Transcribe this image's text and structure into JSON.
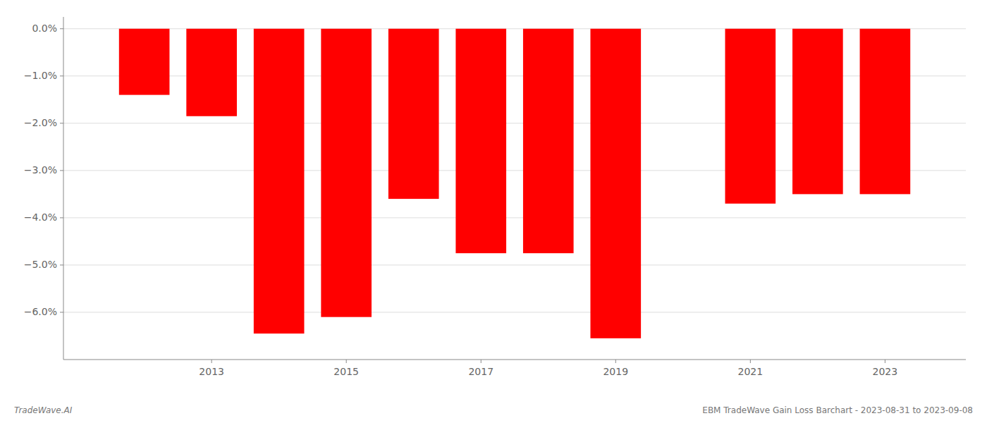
{
  "chart_data": {
    "type": "bar",
    "x": [
      2012,
      2013,
      2014,
      2015,
      2016,
      2017,
      2018,
      2019,
      2021,
      2022,
      2023
    ],
    "values": [
      -1.4,
      -1.85,
      -6.45,
      -6.1,
      -3.6,
      -4.75,
      -4.75,
      -6.55,
      -3.7,
      -3.5,
      -3.5
    ],
    "color": "#ff0000",
    "xlim": [
      2010.8,
      2024.2
    ],
    "xticks": [
      2013,
      2015,
      2017,
      2019,
      2021,
      2023
    ],
    "ylim": [
      -7.0,
      0.25
    ],
    "yticks": [
      {
        "value": 0.0,
        "label": "0.0%"
      },
      {
        "value": -1.0,
        "label": "−1.0%"
      },
      {
        "value": -2.0,
        "label": "−2.0%"
      },
      {
        "value": -3.0,
        "label": "−3.0%"
      },
      {
        "value": -4.0,
        "label": "−4.0%"
      },
      {
        "value": -5.0,
        "label": "−5.0%"
      },
      {
        "value": -6.0,
        "label": "−6.0%"
      }
    ],
    "grid": true,
    "annotations": [
      "TradeWave.AI",
      "EBM TradeWave Gain Loss Barchart - 2023-08-31 to 2023-09-08"
    ]
  }
}
